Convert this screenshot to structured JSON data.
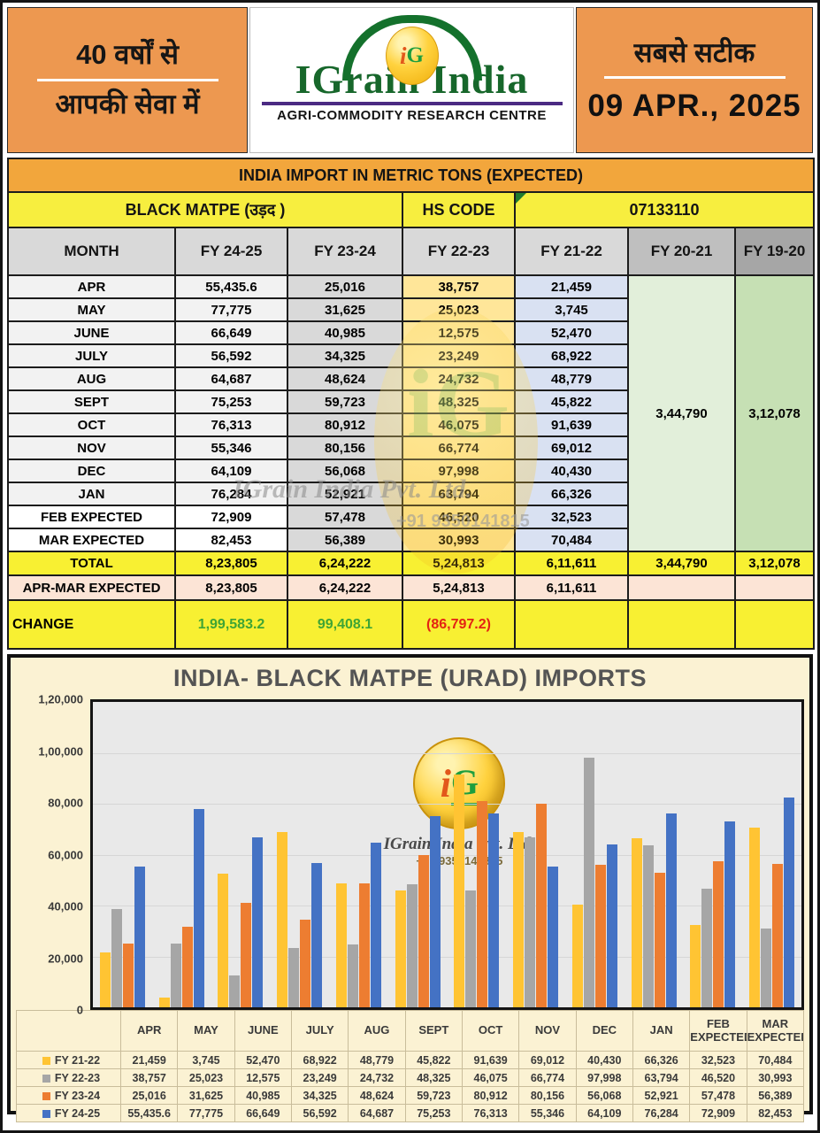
{
  "header": {
    "left_line1": "40 वर्षों से",
    "left_line2": "आपकी सेवा में",
    "logo_i": "i",
    "logo_g": "G",
    "brand": "IGrain India",
    "brand_sub": "AGRI-COMMODITY RESEARCH CENTRE",
    "right_line1": "सबसे सटीक",
    "date": "09 APR., 2025"
  },
  "table": {
    "title": "INDIA IMPORT IN METRIC TONS (EXPECTED)",
    "commodity": "BLACK MATPE (उड़द )",
    "hs_code_label": "HS CODE",
    "hs_code_value": "07133110",
    "columns": [
      "MONTH",
      "FY 24-25",
      "FY 23-24",
      "FY 22-23",
      "FY 21-22",
      "FY 20-21",
      "FY 19-20"
    ],
    "rows": [
      {
        "month": "APR",
        "expected": false,
        "values": [
          "55,435.6",
          "25,016",
          "38,757",
          "21,459"
        ]
      },
      {
        "month": "MAY",
        "expected": false,
        "values": [
          "77,775",
          "31,625",
          "25,023",
          "3,745"
        ]
      },
      {
        "month": "JUNE",
        "expected": false,
        "values": [
          "66,649",
          "40,985",
          "12,575",
          "52,470"
        ]
      },
      {
        "month": "JULY",
        "expected": false,
        "values": [
          "56,592",
          "34,325",
          "23,249",
          "68,922"
        ]
      },
      {
        "month": "AUG",
        "expected": false,
        "values": [
          "64,687",
          "48,624",
          "24,732",
          "48,779"
        ]
      },
      {
        "month": "SEPT",
        "expected": false,
        "values": [
          "75,253",
          "59,723",
          "48,325",
          "45,822"
        ]
      },
      {
        "month": "OCT",
        "expected": false,
        "values": [
          "76,313",
          "80,912",
          "46,075",
          "91,639"
        ]
      },
      {
        "month": "NOV",
        "expected": false,
        "values": [
          "55,346",
          "80,156",
          "66,774",
          "69,012"
        ]
      },
      {
        "month": "DEC",
        "expected": false,
        "values": [
          "64,109",
          "56,068",
          "97,998",
          "40,430"
        ]
      },
      {
        "month": "JAN",
        "expected": false,
        "values": [
          "76,284",
          "52,921",
          "63,794",
          "66,326"
        ]
      },
      {
        "month": "FEB EXPECTED",
        "expected": true,
        "values": [
          "72,909",
          "57,478",
          "46,520",
          "32,523"
        ]
      },
      {
        "month": "MAR EXPECTED",
        "expected": true,
        "values": [
          "82,453",
          "56,389",
          "30,993",
          "70,484"
        ]
      }
    ],
    "fy2021_merged": "3,44,790",
    "fy1920_merged": "3,12,078",
    "total_row": {
      "label": "TOTAL",
      "values": [
        "8,23,805",
        "6,24,222",
        "5,24,813",
        "6,11,611",
        "3,44,790",
        "3,12,078"
      ]
    },
    "aprmar_row": {
      "label": "APR-MAR EXPECTED",
      "values": [
        "8,23,805",
        "6,24,222",
        "5,24,813",
        "6,11,611",
        "",
        ""
      ]
    },
    "change_row": {
      "label": "CHANGE",
      "values": [
        {
          "text": "1,99,583.2",
          "tone": "positive"
        },
        {
          "text": "99,408.1",
          "tone": "positive"
        },
        {
          "text": "(86,797.2)",
          "tone": "negative"
        },
        {
          "text": "",
          "tone": ""
        },
        {
          "text": "",
          "tone": ""
        },
        {
          "text": "",
          "tone": ""
        }
      ]
    }
  },
  "watermark": {
    "company": "IGrain India Pvt. Ltd.",
    "phone": "+91 9350141815",
    "ig": "iG"
  },
  "chart_data": {
    "type": "bar",
    "title": "INDIA- BLACK MATPE (URAD) IMPORTS",
    "categories": [
      "APR",
      "MAY",
      "JUNE",
      "JULY",
      "AUG",
      "SEPT",
      "OCT",
      "NOV",
      "DEC",
      "JAN",
      "FEB EXPECTED",
      "MAR EXPECTED"
    ],
    "series": [
      {
        "name": "FY 21-22",
        "color": "#FFC433",
        "values": [
          21459,
          3745,
          52470,
          68922,
          48779,
          45822,
          91639,
          69012,
          40430,
          66326,
          32523,
          70484
        ],
        "display": [
          "21,459",
          "3,745",
          "52,470",
          "68,922",
          "48,779",
          "45,822",
          "91,639",
          "69,012",
          "40,430",
          "66,326",
          "32,523",
          "70,484"
        ]
      },
      {
        "name": "FY 22-23",
        "color": "#A6A6A6",
        "values": [
          38757,
          25023,
          12575,
          23249,
          24732,
          48325,
          46075,
          66774,
          97998,
          63794,
          46520,
          30993
        ],
        "display": [
          "38,757",
          "25,023",
          "12,575",
          "23,249",
          "24,732",
          "48,325",
          "46,075",
          "66,774",
          "97,998",
          "63,794",
          "46,520",
          "30,993"
        ]
      },
      {
        "name": "FY 23-24",
        "color": "#ED7D31",
        "values": [
          25016,
          31625,
          40985,
          34325,
          48624,
          59723,
          80912,
          80156,
          56068,
          52921,
          57478,
          56389
        ],
        "display": [
          "25,016",
          "31,625",
          "40,985",
          "34,325",
          "48,624",
          "59,723",
          "80,912",
          "80,156",
          "56,068",
          "52,921",
          "57,478",
          "56,389"
        ]
      },
      {
        "name": "FY 24-25",
        "color": "#4472C4",
        "values": [
          55435.6,
          77775,
          66649,
          56592,
          64687,
          75253,
          76313,
          55346,
          64109,
          76284,
          72909,
          82453
        ],
        "display": [
          "55,435.6",
          "77,775",
          "66,649",
          "56,592",
          "64,687",
          "75,253",
          "76,313",
          "55,346",
          "64,109",
          "76,284",
          "72,909",
          "82,453"
        ]
      }
    ],
    "ylim": [
      0,
      120000
    ],
    "ytick_labels": [
      "1,20,000",
      "1,00,000",
      "80,000",
      "60,000",
      "40,000",
      "20,000",
      "0"
    ],
    "grid": true,
    "legend_position": "bottom-table"
  }
}
